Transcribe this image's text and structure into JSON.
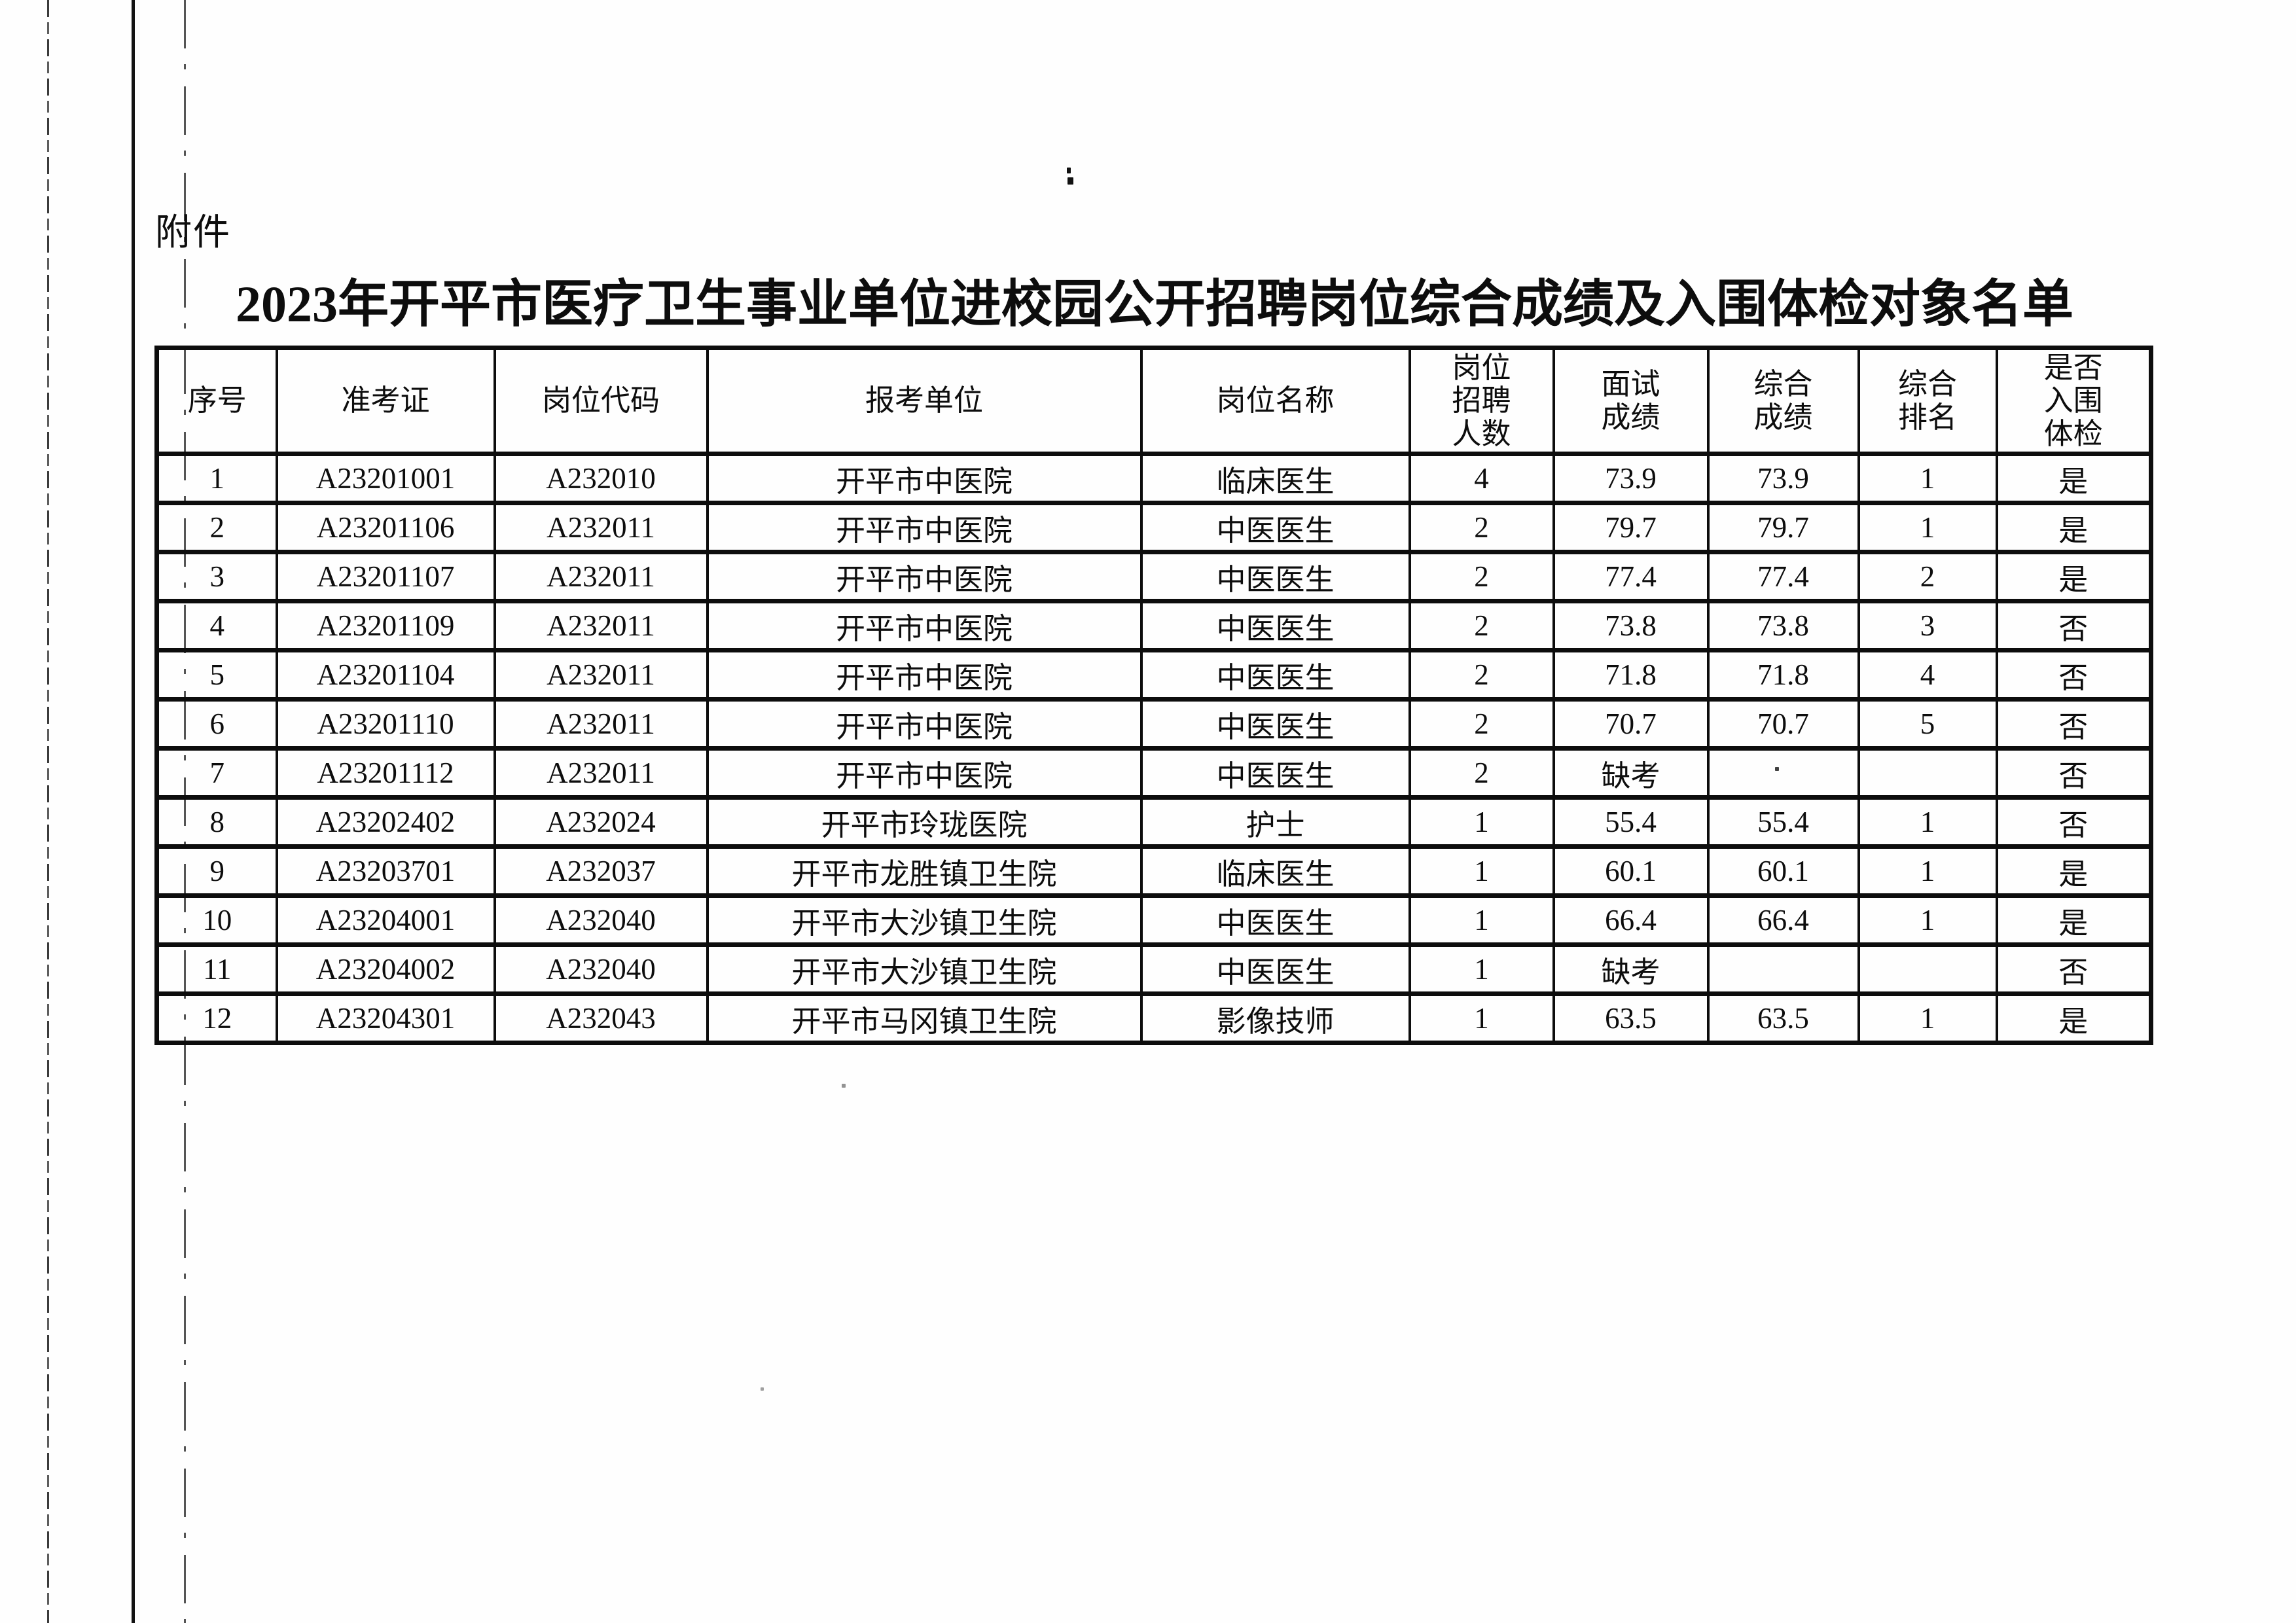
{
  "page": {
    "attachment_label": "附件",
    "title": "2023年开平市医疗卫生事业单位进校园公开招聘岗位综合成绩及入围体检对象名单"
  },
  "table": {
    "headers": [
      "序号",
      "准考证",
      "岗位代码",
      "报考单位",
      "岗位名称",
      "岗位\n招聘\n人数",
      "面试\n成绩",
      "综合\n成绩",
      "综合\n排名",
      "是否\n入围\n体检"
    ],
    "rows": [
      {
        "cells": [
          "1",
          "A23201001",
          "A232010",
          "开平市中医院",
          "临床医生",
          "4",
          "73.9",
          "73.9",
          "1",
          "是"
        ]
      },
      {
        "cells": [
          "2",
          "A23201106",
          "A232011",
          "开平市中医院",
          "中医医生",
          "2",
          "79.7",
          "79.7",
          "1",
          "是"
        ]
      },
      {
        "cells": [
          "3",
          "A23201107",
          "A232011",
          "开平市中医院",
          "中医医生",
          "2",
          "77.4",
          "77.4",
          "2",
          "是"
        ]
      },
      {
        "cells": [
          "4",
          "A23201109",
          "A232011",
          "开平市中医院",
          "中医医生",
          "2",
          "73.8",
          "73.8",
          "3",
          "否"
        ]
      },
      {
        "cells": [
          "5",
          "A23201104",
          "A232011",
          "开平市中医院",
          "中医医生",
          "2",
          "71.8",
          "71.8",
          "4",
          "否"
        ]
      },
      {
        "cells": [
          "6",
          "A23201110",
          "A232011",
          "开平市中医院",
          "中医医生",
          "2",
          "70.7",
          "70.7",
          "5",
          "否"
        ]
      },
      {
        "cells": [
          "7",
          "A23201112",
          "A232011",
          "开平市中医院",
          "中医医生",
          "2",
          "缺考",
          "",
          "",
          "否"
        ]
      },
      {
        "cells": [
          "8",
          "A23202402",
          "A232024",
          "开平市玲珑医院",
          "护士",
          "1",
          "55.4",
          "55.4",
          "1",
          "否"
        ]
      },
      {
        "cells": [
          "9",
          "A23203701",
          "A232037",
          "开平市龙胜镇卫生院",
          "临床医生",
          "1",
          "60.1",
          "60.1",
          "1",
          "是"
        ]
      },
      {
        "cells": [
          "10",
          "A23204001",
          "A232040",
          "开平市大沙镇卫生院",
          "中医医生",
          "1",
          "66.4",
          "66.4",
          "1",
          "是"
        ]
      },
      {
        "cells": [
          "11",
          "A23204002",
          "A232040",
          "开平市大沙镇卫生院",
          "中医医生",
          "1",
          "缺考",
          "",
          "",
          "否"
        ]
      },
      {
        "cells": [
          "12",
          "A23204301",
          "A232043",
          "开平市马冈镇卫生院",
          "影像技师",
          "1",
          "63.5",
          "63.5",
          "1",
          "是"
        ]
      }
    ]
  }
}
